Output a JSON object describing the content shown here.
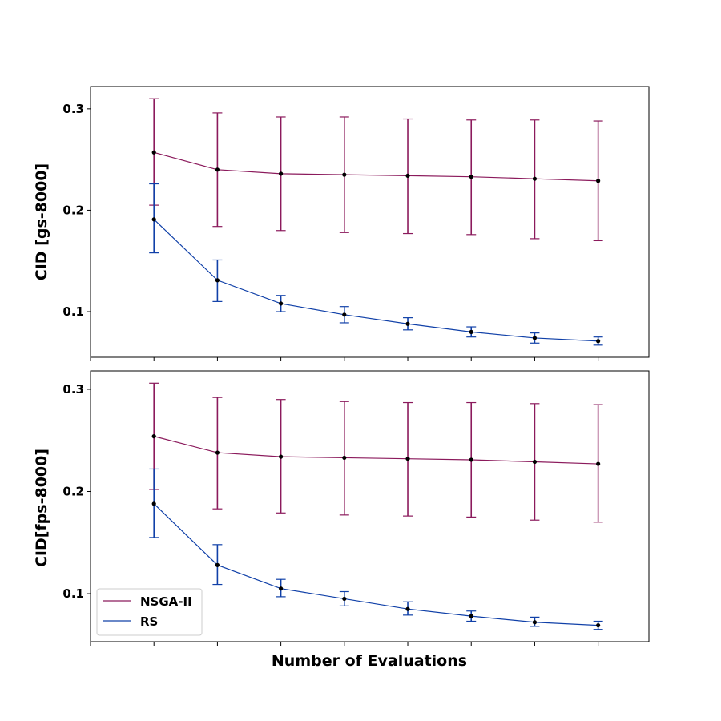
{
  "colors": {
    "nsga": "#8b1a5c",
    "rs": "#1040a8",
    "marker": "#000000"
  },
  "chart_data": [
    {
      "type": "line",
      "title": "",
      "xlabel": "",
      "ylabel": "CID [gs-8000]",
      "ylim": [
        0.055,
        0.322
      ],
      "yticks": [
        0.1,
        0.2,
        0.3
      ],
      "ytick_labels": [
        "0.1",
        "0.2",
        "0.3"
      ],
      "x": [
        1,
        2,
        3,
        4,
        5,
        6,
        7,
        8
      ],
      "xlim": [
        0,
        8.8
      ],
      "series": [
        {
          "name": "NSGA-II",
          "color_key": "nsga",
          "values": [
            0.257,
            0.24,
            0.236,
            0.235,
            0.234,
            0.233,
            0.231,
            0.229
          ],
          "err_low": [
            0.205,
            0.184,
            0.18,
            0.178,
            0.177,
            0.176,
            0.172,
            0.17
          ],
          "err_high": [
            0.31,
            0.296,
            0.292,
            0.292,
            0.29,
            0.289,
            0.289,
            0.288
          ]
        },
        {
          "name": "RS",
          "color_key": "rs",
          "values": [
            0.191,
            0.131,
            0.108,
            0.097,
            0.088,
            0.08,
            0.074,
            0.071
          ],
          "err_low": [
            0.158,
            0.11,
            0.1,
            0.089,
            0.082,
            0.075,
            0.069,
            0.067
          ],
          "err_high": [
            0.226,
            0.151,
            0.116,
            0.105,
            0.094,
            0.085,
            0.079,
            0.075
          ]
        }
      ],
      "grid": false,
      "legend": "none"
    },
    {
      "type": "line",
      "title": "",
      "xlabel": "Number of Evaluations",
      "ylabel": "CID[fps-8000]",
      "ylim": [
        0.053,
        0.318
      ],
      "yticks": [
        0.1,
        0.2,
        0.3
      ],
      "ytick_labels": [
        "0.1",
        "0.2",
        "0.3"
      ],
      "x": [
        1,
        2,
        3,
        4,
        5,
        6,
        7,
        8
      ],
      "xlim": [
        0,
        8.8
      ],
      "series": [
        {
          "name": "NSGA-II",
          "color_key": "nsga",
          "values": [
            0.254,
            0.238,
            0.234,
            0.233,
            0.232,
            0.231,
            0.229,
            0.227
          ],
          "err_low": [
            0.202,
            0.183,
            0.179,
            0.177,
            0.176,
            0.175,
            0.172,
            0.17
          ],
          "err_high": [
            0.306,
            0.292,
            0.29,
            0.288,
            0.287,
            0.287,
            0.286,
            0.285
          ]
        },
        {
          "name": "RS",
          "color_key": "rs",
          "values": [
            0.188,
            0.128,
            0.105,
            0.095,
            0.085,
            0.078,
            0.072,
            0.069
          ],
          "err_low": [
            0.155,
            0.109,
            0.097,
            0.088,
            0.079,
            0.073,
            0.068,
            0.065
          ],
          "err_high": [
            0.222,
            0.148,
            0.114,
            0.102,
            0.092,
            0.083,
            0.077,
            0.073
          ]
        }
      ],
      "grid": false,
      "legend": "lower-left"
    }
  ]
}
